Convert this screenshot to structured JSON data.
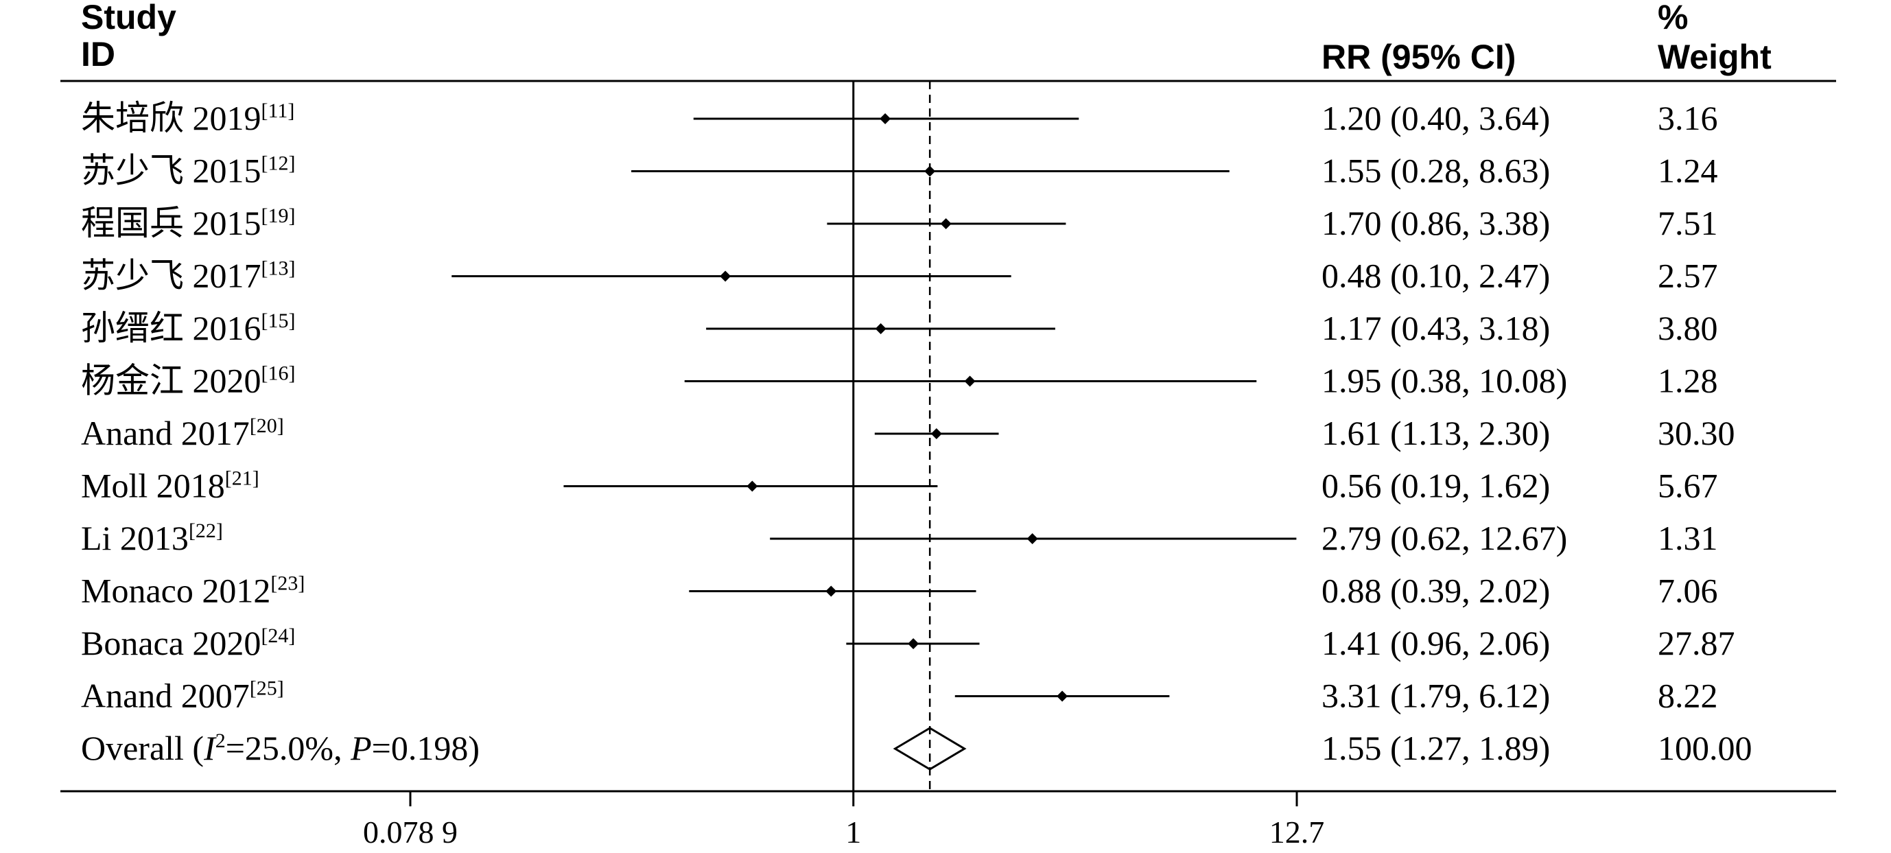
{
  "header": {
    "study_line1": "Study",
    "study_line2": "ID",
    "rr_label": "RR (95% CI)",
    "weight_line1": "%",
    "weight_line2": "Weight"
  },
  "chart_data": {
    "type": "forest",
    "scale": "log",
    "x_ticks": [
      {
        "value": 0.0789,
        "label": "0.078 9"
      },
      {
        "value": 1,
        "label": "1"
      },
      {
        "value": 12.7,
        "label": "12.7"
      }
    ],
    "reference_line": 1,
    "overall_line": 1.55,
    "studies": [
      {
        "name": "朱培欣 2019",
        "ref": "[11]",
        "rr": 1.2,
        "lo": 0.4,
        "hi": 3.64,
        "rr_text": "1.20 (0.40, 3.64)",
        "weight": "3.16"
      },
      {
        "name": "苏少飞 2015",
        "ref": "[12]",
        "rr": 1.55,
        "lo": 0.28,
        "hi": 8.63,
        "rr_text": "1.55 (0.28, 8.63)",
        "weight": "1.24"
      },
      {
        "name": "程国兵 2015",
        "ref": "[19]",
        "rr": 1.7,
        "lo": 0.86,
        "hi": 3.38,
        "rr_text": "1.70 (0.86, 3.38)",
        "weight": "7.51"
      },
      {
        "name": "苏少飞 2017",
        "ref": "[13]",
        "rr": 0.48,
        "lo": 0.1,
        "hi": 2.47,
        "rr_text": "0.48 (0.10, 2.47)",
        "weight": "2.57"
      },
      {
        "name": "孙缙红 2016",
        "ref": "[15]",
        "rr": 1.17,
        "lo": 0.43,
        "hi": 3.18,
        "rr_text": "1.17 (0.43, 3.18)",
        "weight": "3.80"
      },
      {
        "name": "杨金江 2020",
        "ref": "[16]",
        "rr": 1.95,
        "lo": 0.38,
        "hi": 10.08,
        "rr_text": "1.95 (0.38, 10.08)",
        "weight": "1.28"
      },
      {
        "name": "Anand 2017",
        "ref": "[20]",
        "rr": 1.61,
        "lo": 1.13,
        "hi": 2.3,
        "rr_text": "1.61 (1.13, 2.30)",
        "weight": "30.30"
      },
      {
        "name": "Moll 2018",
        "ref": "[21]",
        "rr": 0.56,
        "lo": 0.19,
        "hi": 1.62,
        "rr_text": "0.56 (0.19, 1.62)",
        "weight": "5.67"
      },
      {
        "name": "Li 2013",
        "ref": "[22]",
        "rr": 2.79,
        "lo": 0.62,
        "hi": 12.67,
        "rr_text": "2.79 (0.62, 12.67)",
        "weight": "1.31"
      },
      {
        "name": "Monaco 2012",
        "ref": "[23]",
        "rr": 0.88,
        "lo": 0.39,
        "hi": 2.02,
        "rr_text": "0.88 (0.39, 2.02)",
        "weight": "7.06"
      },
      {
        "name": "Bonaca 2020",
        "ref": "[24]",
        "rr": 1.41,
        "lo": 0.96,
        "hi": 2.06,
        "rr_text": "1.41 (0.96, 2.06)",
        "weight": "27.87"
      },
      {
        "name": "Anand 2007",
        "ref": "[25]",
        "rr": 3.31,
        "lo": 1.79,
        "hi": 6.12,
        "rr_text": "3.31 (1.79, 6.12)",
        "weight": "8.22"
      }
    ],
    "overall": {
      "prefix": "Overall (",
      "i2_symbol": "I",
      "i2_sup": "2",
      "i2_text": "=25.0%, ",
      "p_symbol": "P",
      "p_text": "=0.198)",
      "rr": 1.55,
      "lo": 1.27,
      "hi": 1.89,
      "rr_text": "1.55 (1.27, 1.89)",
      "weight": "100.00"
    }
  }
}
